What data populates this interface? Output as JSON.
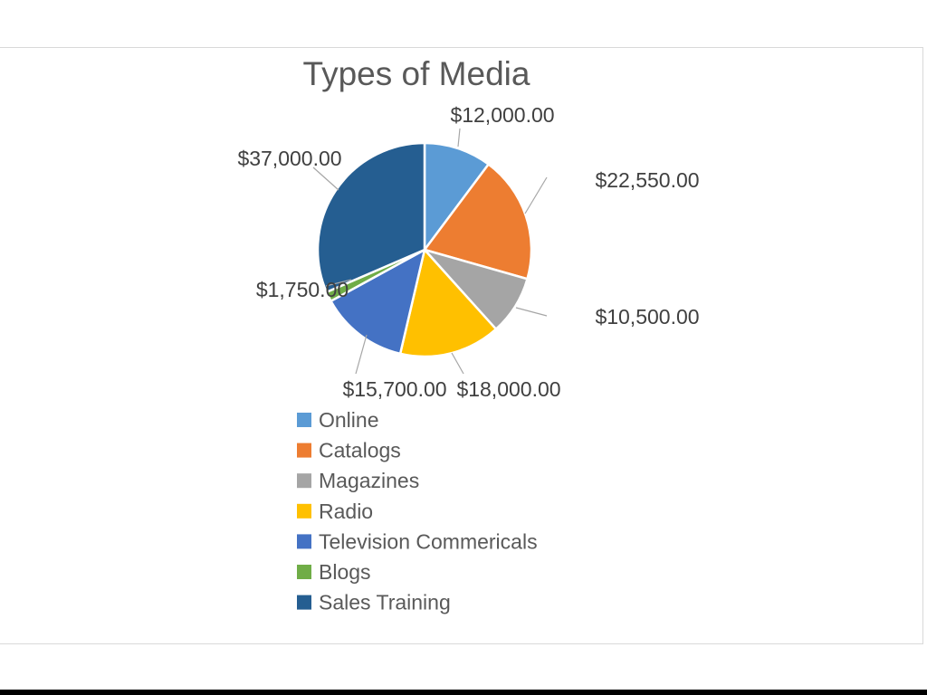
{
  "chart_data": {
    "type": "pie",
    "title": "Types of Media",
    "categories": [
      "Online",
      "Catalogs",
      "Magazines",
      "Radio",
      "Television Commericals",
      "Blogs",
      "Sales Training"
    ],
    "values": [
      12000,
      22550,
      10500,
      18000,
      15700,
      1750,
      37000
    ],
    "data_labels": [
      "$12,000.00",
      "$22,550.00",
      "$10,500.00",
      "$18,000.00",
      "$15,700.00",
      "$1,750.00",
      "$37,000.00"
    ],
    "colors": [
      "#5b9bd5",
      "#ed7d31",
      "#a5a5a5",
      "#ffc000",
      "#4472c4",
      "#70ad47",
      "#255e91"
    ],
    "legend_position": "bottom"
  }
}
